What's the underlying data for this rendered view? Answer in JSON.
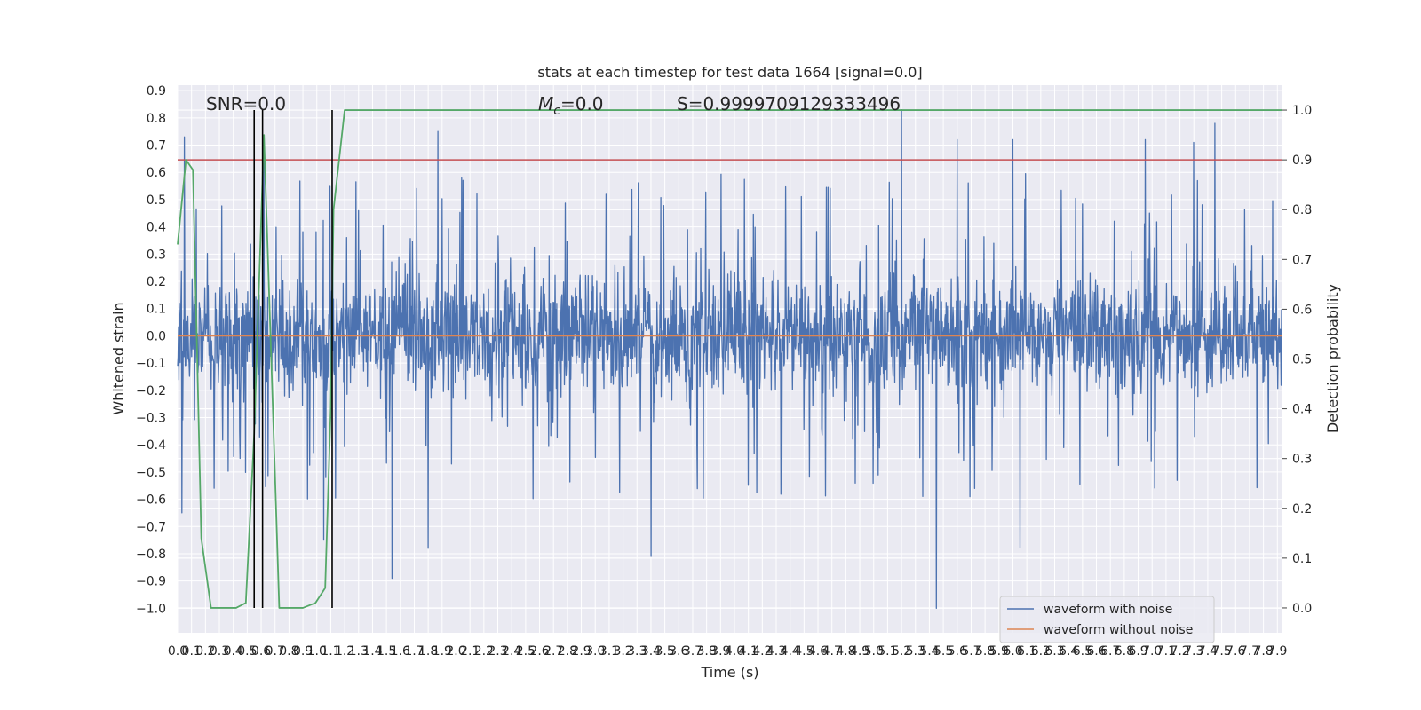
{
  "chart_data": {
    "type": "line",
    "title": "stats at each timestep for test data 1664 [signal=0.0]",
    "xlabel": "Time (s)",
    "ylabel_left": "Whitened strain",
    "ylabel_right": "Detection probability",
    "xlim": [
      0.0,
      7.93
    ],
    "ylim_left": [
      -1.09,
      0.92
    ],
    "ylim_right": [
      -0.05,
      1.05
    ],
    "x_ticks": [
      "0.0",
      "0.1",
      "0.2",
      "0.3",
      "0.4",
      "0.5",
      "0.6",
      "0.7",
      "0.8",
      "0.9",
      "1.0",
      "1.1",
      "1.2",
      "1.3",
      "1.4",
      "1.5",
      "1.6",
      "1.7",
      "1.8",
      "1.9",
      "2.0",
      "2.1",
      "2.2",
      "2.3",
      "2.4",
      "2.5",
      "2.6",
      "2.7",
      "2.8",
      "2.9",
      "3.0",
      "3.1",
      "3.2",
      "3.3",
      "3.4",
      "3.5",
      "3.6",
      "3.7",
      "3.8",
      "3.9",
      "4.0",
      "4.1",
      "4.2",
      "4.3",
      "4.4",
      "4.5",
      "4.6",
      "4.7",
      "4.8",
      "4.9",
      "5.0",
      "5.1",
      "5.2",
      "5.3",
      "5.4",
      "5.5",
      "5.6",
      "5.7",
      "5.8",
      "5.9",
      "6.0",
      "6.1",
      "6.2",
      "6.3",
      "6.4",
      "6.5",
      "6.6",
      "6.7",
      "6.8",
      "6.9",
      "7.0",
      "7.1",
      "7.2",
      "7.3",
      "7.4",
      "7.5",
      "7.6",
      "7.7",
      "7.8",
      "7.9"
    ],
    "y_ticks_left": [
      "0.9",
      "0.8",
      "0.7",
      "0.6",
      "0.5",
      "0.4",
      "0.3",
      "0.2",
      "0.1",
      "0.0",
      "−0.1",
      "−0.2",
      "−0.3",
      "−0.4",
      "−0.5",
      "−0.6",
      "−0.7",
      "−0.8",
      "−0.9",
      "−1.0"
    ],
    "y_ticks_right": [
      "1.0",
      "0.9",
      "0.8",
      "0.7",
      "0.6",
      "0.5",
      "0.4",
      "0.3",
      "0.2",
      "0.1",
      "0.0"
    ],
    "annotations": {
      "snr": "SNR=0.0",
      "mc_symbol": "M",
      "mc_subscript": "c",
      "mc_value": "=0.0",
      "s": "S=0.9999709129333496"
    },
    "series": [
      {
        "name": "waveform with noise",
        "color": "#4c72b0",
        "axis": "left",
        "envelope": {
          "core_amplitude": 0.28,
          "typical_peak": 0.45,
          "max": 0.83,
          "min": -1.0,
          "high_spikes": [
            {
              "x": 0.05,
              "y": 0.73
            },
            {
              "x": 0.62,
              "y": 0.71
            },
            {
              "x": 1.87,
              "y": 0.75
            },
            {
              "x": 5.2,
              "y": 0.83
            },
            {
              "x": 5.6,
              "y": 0.72
            },
            {
              "x": 6.0,
              "y": 0.72
            },
            {
              "x": 6.95,
              "y": 0.72
            },
            {
              "x": 7.3,
              "y": 0.71
            },
            {
              "x": 7.45,
              "y": 0.78
            }
          ],
          "low_spikes": [
            {
              "x": 0.03,
              "y": -0.65
            },
            {
              "x": 1.54,
              "y": -0.89
            },
            {
              "x": 1.8,
              "y": -0.78
            },
            {
              "x": 3.4,
              "y": -0.81
            },
            {
              "x": 5.45,
              "y": -1.0
            },
            {
              "x": 6.05,
              "y": -0.78
            },
            {
              "x": 1.05,
              "y": -0.75
            }
          ]
        }
      },
      {
        "name": "waveform without noise",
        "color": "#dd8452",
        "axis": "left",
        "x": [
          0.0,
          7.93
        ],
        "y": [
          0.0,
          0.0
        ]
      },
      {
        "color": "#55a868",
        "axis": "right",
        "x": [
          0.0,
          0.06,
          0.11,
          0.17,
          0.24,
          0.31,
          0.42,
          0.49,
          0.55,
          0.62,
          0.69,
          0.73,
          0.79,
          0.9,
          0.99,
          1.06,
          1.1,
          1.12,
          1.2,
          7.93
        ],
        "y": [
          0.73,
          0.9,
          0.88,
          0.14,
          0.0,
          0.0,
          0.0,
          0.01,
          0.35,
          0.95,
          0.35,
          0.0,
          0.0,
          0.0,
          0.01,
          0.04,
          0.4,
          0.8,
          1.0,
          1.0
        ]
      },
      {
        "color": "#c44e52",
        "axis": "right",
        "x": [
          0.0,
          7.93
        ],
        "y": [
          0.9,
          0.9
        ]
      }
    ],
    "vlines": [
      {
        "x": 0.55,
        "color": "#000000"
      },
      {
        "x": 0.61,
        "color": "#000000"
      },
      {
        "x": 1.11,
        "color": "#000000"
      }
    ],
    "legend": {
      "placement": "lower-right",
      "entries": [
        {
          "label": "waveform with noise",
          "color": "#4c72b0"
        },
        {
          "label": "waveform without noise",
          "color": "#dd8452"
        }
      ]
    },
    "grid": true,
    "background": "#eaeaf2"
  }
}
